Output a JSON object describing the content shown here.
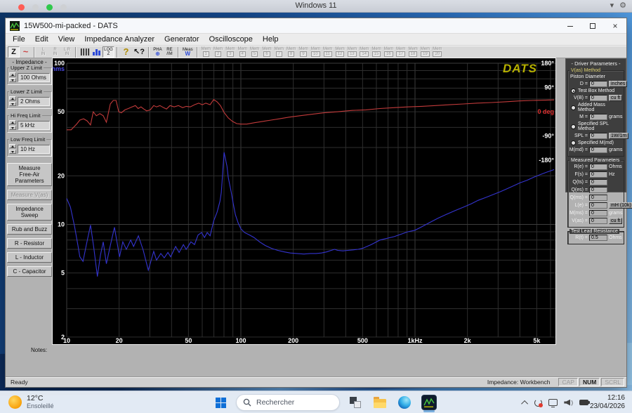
{
  "vm_bar": {
    "title": "Windows 11"
  },
  "window": {
    "title": "15W500-mi-packed - DATS"
  },
  "menu": {
    "items": [
      "File",
      "Edit",
      "View",
      "Impedance Analyzer",
      "Generator",
      "Oscilloscope",
      "Help"
    ]
  },
  "toolbar": {
    "items": [
      {
        "id": "impedance-magnitude",
        "glyph": "Z",
        "pressed": true
      },
      {
        "id": "sine-generator",
        "glyph": "~",
        "color": "#cc4a4a",
        "big": true
      },
      {
        "sep": true
      },
      {
        "id": "left-input",
        "top": "L",
        "bottom": "IN",
        "disabled": true
      },
      {
        "id": "right-input",
        "top": "R",
        "bottom": "IN",
        "disabled": true
      },
      {
        "id": "stereo-input",
        "top": "L R",
        "bottom": "IN",
        "disabled": true
      },
      {
        "sep": true
      },
      {
        "id": "frequency-markers",
        "kind": "comb"
      },
      {
        "id": "bar-display",
        "kind": "bars"
      },
      {
        "id": "log-impedance",
        "top": "LOG",
        "bottom": "Z",
        "pressed": true
      },
      {
        "sep": true
      },
      {
        "id": "help",
        "glyph": "?",
        "color": "#b08c00",
        "big": true
      },
      {
        "id": "context-help",
        "glyph": "↖?"
      },
      {
        "sep": true
      },
      {
        "id": "phase-display",
        "top": "PHA",
        "bottom": "⊕",
        "bottomColor": "#2c49d8"
      },
      {
        "id": "real-imaginary",
        "top": "RE",
        "bottom": "/IM"
      },
      {
        "sep": true
      },
      {
        "id": "measure-waveform",
        "top": "Meas",
        "bottom": "W",
        "bottomColor": "#2c49d8"
      },
      {
        "sep": true
      }
    ],
    "memory": {
      "label": "Mem",
      "count": 20
    }
  },
  "left_panel": {
    "title": "- Impedance -",
    "limits": [
      {
        "label": "Upper Z Limit",
        "value": "100 Ohms"
      },
      {
        "label": "Lower Z Limit",
        "value": "2 Ohms"
      },
      {
        "label": "Hi Freq Limit",
        "value": "5 kHz"
      },
      {
        "label": "Low Freq Limit",
        "value": "10 Hz"
      }
    ],
    "buttons": [
      {
        "label": "Measure\nFree-Air\nParameters",
        "enabled": true
      },
      {
        "label": "Measure V(as)",
        "enabled": false
      },
      {
        "label": "Impedance\nSweep",
        "enabled": true
      },
      {
        "label": "Rub and Buzz",
        "enabled": true
      },
      {
        "label": "R - Resistor",
        "enabled": true
      },
      {
        "label": "L - Inductor",
        "enabled": true
      },
      {
        "label": "C - Capacitor",
        "enabled": true
      }
    ]
  },
  "right_panel": {
    "title": "- Driver Parameters -",
    "groups": [
      {
        "title": "V(as) Method",
        "accent": true,
        "rows": [
          {
            "type": "label",
            "text": "Piston Diameter"
          },
          {
            "type": "field",
            "label": "D =",
            "value": "0",
            "unit": "inches",
            "boxed": true
          },
          {
            "type": "radio",
            "text": "Test Box Method",
            "selected": true
          },
          {
            "type": "field",
            "label": "V(B) =",
            "value": "0",
            "unit": "cu ft",
            "boxed": true
          },
          {
            "type": "radio",
            "text": "Added Mass Method",
            "selected": false
          },
          {
            "type": "field",
            "label": "M =",
            "value": "0",
            "unit": "grams",
            "boxed": false
          },
          {
            "type": "radio",
            "text": "Specified SPL Method",
            "selected": false
          },
          {
            "type": "field",
            "label": "SPL =",
            "value": "0",
            "unit": "1W/1m",
            "boxed": true
          },
          {
            "type": "radio",
            "text": "Specified M(md)",
            "selected": false
          },
          {
            "type": "field",
            "label": "M(md) =",
            "value": "0",
            "unit": "grams",
            "boxed": false
          }
        ]
      },
      {
        "title": "Measured Parameters",
        "accent": false,
        "rows": [
          {
            "type": "field",
            "label": "R(e) =",
            "value": "0",
            "unit": "Ohms",
            "boxed": false
          },
          {
            "type": "field",
            "label": "F(s) =",
            "value": "0",
            "unit": "Hz",
            "boxed": false
          },
          {
            "type": "field",
            "label": "Q(ts) =",
            "value": "0"
          },
          {
            "type": "field",
            "label": "Q(es) =",
            "value": "0"
          },
          {
            "type": "field",
            "label": "Q(ms) =",
            "value": "0"
          },
          {
            "type": "field",
            "label": "L(e) =",
            "value": "0",
            "unit": "mH (10k)",
            "boxed": true
          },
          {
            "type": "field",
            "label": "M(ms) =",
            "value": "0",
            "unit": "grams",
            "boxed": false
          },
          {
            "type": "field",
            "label": "V(as) =",
            "value": "0",
            "unit": "cu ft",
            "boxed": true
          }
        ]
      },
      {
        "title": "Test Lead Resistance",
        "accent": false,
        "rows": [
          {
            "type": "field",
            "label": "R(t) =",
            "value": "0.5",
            "unit": "Ohms",
            "boxed": false
          }
        ]
      }
    ]
  },
  "chart_data": {
    "type": "line",
    "logo": "DATS",
    "logo_color": "#b6b000",
    "background": "#000000",
    "grid_color": "#2e2e2e",
    "grid_major_color": "#3d3d3d",
    "x_axis": {
      "scale": "log",
      "min": 10,
      "max": 6300,
      "unit": "Hz",
      "ticks": [
        [
          10,
          "10"
        ],
        [
          20,
          "20"
        ],
        [
          50,
          "50"
        ],
        [
          100,
          "100"
        ],
        [
          200,
          "200"
        ],
        [
          500,
          "500"
        ],
        [
          1000,
          "1kHz"
        ],
        [
          2000,
          "2k"
        ],
        [
          5000,
          "5k"
        ]
      ]
    },
    "y_axis_left": {
      "scale": "log",
      "min": 2,
      "max": 100,
      "label": "Ohms",
      "label_color": "#4a4ae8",
      "ticks": [
        [
          100,
          "100"
        ],
        [
          50,
          "50"
        ],
        [
          20,
          "20"
        ],
        [
          10,
          "10"
        ],
        [
          5,
          "5"
        ],
        [
          2,
          "2"
        ]
      ]
    },
    "y_axis_right": {
      "min": -180,
      "max": 180,
      "unit": "deg",
      "zero_color": "#e03030",
      "mapping": "deg d plotted at ohms-equivalent 50*2^(d/180)",
      "ticks": [
        [
          180,
          "180°"
        ],
        [
          90,
          "90°"
        ],
        [
          0,
          "0 deg"
        ],
        [
          -90,
          "-90°"
        ],
        [
          -180,
          "-180°"
        ]
      ]
    },
    "series": [
      {
        "name": "impedance-magnitude",
        "color": "#3434cf",
        "x_unit": "Hz",
        "y_unit": "ohms",
        "points": [
          [
            10,
            14.5
          ],
          [
            10.5,
            12.8
          ],
          [
            11.1,
            9.7
          ],
          [
            11.6,
            7.4
          ],
          [
            11.9,
            6.3
          ],
          [
            12.4,
            5.9
          ],
          [
            13.0,
            7.6
          ],
          [
            13.7,
            9.9
          ],
          [
            14.3,
            7.2
          ],
          [
            15.0,
            4.75
          ],
          [
            15.6,
            6.4
          ],
          [
            16.2,
            7.8
          ],
          [
            16.9,
            5.7
          ],
          [
            17.8,
            7.4
          ],
          [
            18.8,
            9.6
          ],
          [
            20.1,
            6.3
          ],
          [
            21.0,
            7.8
          ],
          [
            22.0,
            7.0
          ],
          [
            23.3,
            8.0
          ],
          [
            24.2,
            7.3
          ],
          [
            25.8,
            8.5
          ],
          [
            27.5,
            6.9
          ],
          [
            29.4,
            5.2
          ],
          [
            31.6,
            6.8
          ],
          [
            32.8,
            6.0
          ],
          [
            34.7,
            6.6
          ],
          [
            36.3,
            6.2
          ],
          [
            38.1,
            6.7
          ],
          [
            39.5,
            6.3
          ],
          [
            42.2,
            7.3
          ],
          [
            44.2,
            6.7
          ],
          [
            46.8,
            7.5
          ],
          [
            48.5,
            7.0
          ],
          [
            51.7,
            7.8
          ],
          [
            54.2,
            7.5
          ],
          [
            56.8,
            8.6
          ],
          [
            59.5,
            8.9
          ],
          [
            61.8,
            8.3
          ],
          [
            64.1,
            8.9
          ],
          [
            66.6,
            8.5
          ],
          [
            69.8,
            10.5
          ],
          [
            73.0,
            11.9
          ],
          [
            75.8,
            13.9
          ],
          [
            77.2,
            15.7
          ],
          [
            78.7,
            21.2
          ],
          [
            80.1,
            28.0
          ],
          [
            83.2,
            23.0
          ],
          [
            84.7,
            19.5
          ],
          [
            87.9,
            16.0
          ],
          [
            90.4,
            13.5
          ],
          [
            93.0,
            11.5
          ],
          [
            96.5,
            10.2
          ],
          [
            100,
            9.4
          ],
          [
            105,
            8.9
          ],
          [
            112,
            8.6
          ],
          [
            119,
            8.3
          ],
          [
            128,
            7.8
          ],
          [
            138,
            7.4
          ],
          [
            150,
            7.1
          ],
          [
            163,
            6.9
          ],
          [
            178,
            6.75
          ],
          [
            192,
            6.65
          ],
          [
            210,
            6.6
          ],
          [
            230,
            6.55
          ],
          [
            250,
            6.6
          ],
          [
            270,
            6.6
          ],
          [
            290,
            6.65
          ],
          [
            310,
            6.75
          ],
          [
            330,
            6.9
          ],
          [
            345,
            7.0
          ],
          [
            360,
            6.9
          ],
          [
            385,
            6.85
          ],
          [
            410,
            6.9
          ],
          [
            440,
            6.95
          ],
          [
            470,
            7.0
          ],
          [
            500,
            7.1
          ],
          [
            560,
            7.5
          ],
          [
            630,
            8.0
          ],
          [
            760,
            8.4
          ],
          [
            910,
            9.0
          ],
          [
            1000,
            9.2
          ],
          [
            1100,
            9.7
          ],
          [
            1200,
            10.2
          ],
          [
            1350,
            10.9
          ],
          [
            1500,
            11.5
          ],
          [
            1700,
            12.2
          ],
          [
            1900,
            12.8
          ],
          [
            2100,
            13.4
          ],
          [
            2300,
            14.1
          ],
          [
            2550,
            14.7
          ],
          [
            2800,
            15.3
          ],
          [
            3100,
            16.0
          ],
          [
            3400,
            16.7
          ],
          [
            3700,
            17.4
          ],
          [
            4000,
            18.1
          ],
          [
            4400,
            18.8
          ],
          [
            4800,
            19.6
          ],
          [
            5200,
            20.3
          ],
          [
            5700,
            21.1
          ],
          [
            6300,
            21.9
          ]
        ]
      },
      {
        "name": "impedance-phase",
        "color": "#c23b3b",
        "x_unit": "Hz",
        "y_unit": "deg",
        "points": [
          [
            10,
            -67
          ],
          [
            10.6,
            -67
          ],
          [
            11.4,
            -46
          ],
          [
            11.9,
            -31
          ],
          [
            12.5,
            -26
          ],
          [
            13.1,
            -34
          ],
          [
            13.7,
            -49
          ],
          [
            14.2,
            0
          ],
          [
            14.8,
            -15
          ],
          [
            15.5,
            -7
          ],
          [
            16.2,
            -15
          ],
          [
            16.9,
            -39
          ],
          [
            17.8,
            29
          ],
          [
            18.5,
            42
          ],
          [
            19.2,
            42
          ],
          [
            19.9,
            0
          ],
          [
            20.6,
            -4
          ],
          [
            21.6,
            7
          ],
          [
            22.6,
            12
          ],
          [
            23.7,
            18
          ],
          [
            24.8,
            23
          ],
          [
            25.7,
            12
          ],
          [
            26.7,
            18
          ],
          [
            27.7,
            10
          ],
          [
            28.8,
            3
          ],
          [
            30.2,
            7
          ],
          [
            31.6,
            23
          ],
          [
            32.8,
            18
          ],
          [
            34.3,
            23
          ],
          [
            36.0,
            15
          ],
          [
            37.4,
            10
          ],
          [
            39.2,
            23
          ],
          [
            41.4,
            18
          ],
          [
            43.8,
            23
          ],
          [
            46.3,
            15
          ],
          [
            48.5,
            20
          ],
          [
            51.2,
            18
          ],
          [
            54.2,
            26
          ],
          [
            57.3,
            32
          ],
          [
            60.0,
            26
          ],
          [
            62.9,
            32
          ],
          [
            66.6,
            26
          ],
          [
            69.8,
            45
          ],
          [
            73.0,
            37
          ],
          [
            76.3,
            23
          ],
          [
            80.0,
            -2
          ],
          [
            84.7,
            -23
          ],
          [
            89.6,
            -36
          ],
          [
            94.7,
            -44
          ],
          [
            100,
            -46
          ],
          [
            108,
            -46
          ],
          [
            119,
            -41
          ],
          [
            133,
            -36
          ],
          [
            149,
            -31
          ],
          [
            167,
            -26
          ],
          [
            189,
            -20
          ],
          [
            218,
            -15
          ],
          [
            250,
            -10
          ],
          [
            300,
            -4
          ],
          [
            360,
            0
          ],
          [
            434,
            5
          ],
          [
            523,
            7
          ],
          [
            628,
            12
          ],
          [
            755,
            15
          ],
          [
            908,
            18
          ],
          [
            1091,
            20
          ],
          [
            1312,
            23
          ],
          [
            1577,
            26
          ],
          [
            1896,
            29
          ],
          [
            2279,
            32
          ],
          [
            2740,
            34
          ],
          [
            3294,
            37
          ],
          [
            3960,
            40
          ],
          [
            4761,
            42
          ],
          [
            5600,
            43
          ],
          [
            6300,
            44
          ]
        ]
      }
    ]
  },
  "notes": {
    "label": "Notes:"
  },
  "status_bar": {
    "left": "Ready",
    "mode": "Impedance: Workbench",
    "indicators": [
      {
        "label": "CAP",
        "active": false
      },
      {
        "label": "NUM",
        "active": true
      },
      {
        "label": "SCRL",
        "active": false
      }
    ]
  },
  "taskbar": {
    "weather": {
      "temp": "12°C",
      "condition": "Ensoleillé"
    },
    "search": {
      "placeholder": "Rechercher"
    },
    "clock": {
      "time": "12:16",
      "date": "23/04/2026"
    }
  }
}
